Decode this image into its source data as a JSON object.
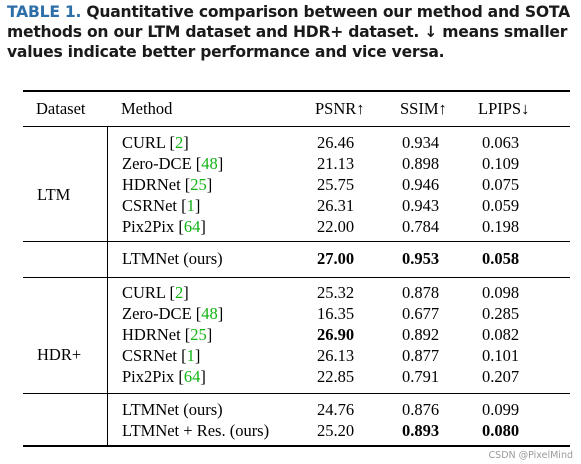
{
  "caption": {
    "label": "TABLE 1.",
    "text": "Quantitative comparison between our method and SOTA methods on our LTM dataset and HDR+ dataset. ↓ means smaller values indicate better performance and vice versa."
  },
  "table": {
    "headers": [
      "Dataset",
      "Method",
      "PSNR↑",
      "SSIM↑",
      "LPIPS↓"
    ],
    "groups": [
      {
        "dataset": "LTM",
        "rows": [
          {
            "method": "CURL",
            "cite": "2",
            "psnr": "26.46",
            "ssim": "0.934",
            "lpips": "0.063"
          },
          {
            "method": "Zero-DCE",
            "cite": "48",
            "psnr": "21.13",
            "ssim": "0.898",
            "lpips": "0.109"
          },
          {
            "method": "HDRNet",
            "cite": "25",
            "psnr": "25.75",
            "ssim": "0.946",
            "lpips": "0.075"
          },
          {
            "method": "CSRNet",
            "cite": "1",
            "psnr": "26.31",
            "ssim": "0.943",
            "lpips": "0.059"
          },
          {
            "method": "Pix2Pix",
            "cite": "64",
            "psnr": "22.00",
            "ssim": "0.784",
            "lpips": "0.198"
          }
        ],
        "ours": [
          {
            "method": "LTMNet (ours)",
            "psnr": "27.00",
            "ssim": "0.953",
            "lpips": "0.058"
          }
        ]
      },
      {
        "dataset": "HDR+",
        "rows": [
          {
            "method": "CURL",
            "cite": "2",
            "psnr": "25.32",
            "ssim": "0.878",
            "lpips": "0.098"
          },
          {
            "method": "Zero-DCE",
            "cite": "48",
            "psnr": "16.35",
            "ssim": "0.677",
            "lpips": "0.285"
          },
          {
            "method": "HDRNet",
            "cite": "25",
            "psnr": "26.90",
            "ssim": "0.892",
            "lpips": "0.082"
          },
          {
            "method": "CSRNet",
            "cite": "1",
            "psnr": "26.13",
            "ssim": "0.877",
            "lpips": "0.101"
          },
          {
            "method": "Pix2Pix",
            "cite": "64",
            "psnr": "22.85",
            "ssim": "0.791",
            "lpips": "0.207"
          }
        ],
        "ours": [
          {
            "method": "LTMNet (ours)",
            "psnr": "24.76",
            "ssim": "0.876",
            "lpips": "0.099"
          },
          {
            "method": "LTMNet + Res. (ours)",
            "psnr": "25.20",
            "ssim": "0.893",
            "lpips": "0.080"
          }
        ]
      }
    ]
  },
  "watermark": "CSDN @PixelMind"
}
